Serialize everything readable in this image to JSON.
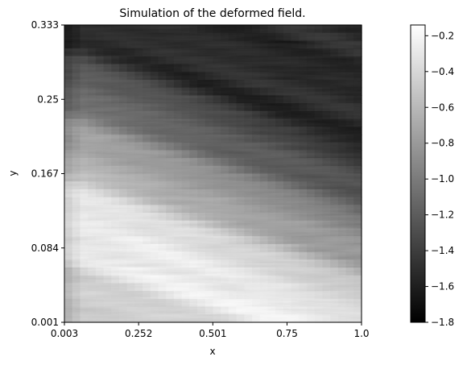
{
  "chart_data": {
    "type": "heatmap",
    "title": "Simulation of the deformed field.",
    "xlabel": "x",
    "ylabel": "y",
    "xlim": [
      0.003,
      1.0
    ],
    "ylim": [
      0.001,
      0.333
    ],
    "x_ticks": [
      0.003,
      0.252,
      0.501,
      0.75,
      1.0
    ],
    "x_tick_labels": [
      "0.003",
      "0.252",
      "0.501",
      "0.75",
      "1.0"
    ],
    "y_ticks": [
      0.001,
      0.084,
      0.167,
      0.25,
      0.333
    ],
    "y_tick_labels": [
      "0.001",
      "0.084",
      "0.167",
      "0.25",
      "0.333"
    ],
    "colormap": "gray",
    "colorbar": {
      "range": [
        -1.8,
        -0.14
      ],
      "ticks": [
        -1.8,
        -1.6,
        -1.4,
        -1.2,
        -1.0,
        -0.8,
        -0.6,
        -0.4,
        -0.2
      ],
      "tick_labels": [
        "−1.8",
        "−1.6",
        "−1.4",
        "−1.2",
        "−1.0",
        "−0.8",
        "−0.6",
        "−0.4",
        "−0.2"
      ]
    },
    "field_description": "Smooth diagonal gradient: brightest (about -0.3) in a band near y 0.08 to 0.15, darkest (about -1.75) near the top right (x 0.6 to 1.0, y 0.2 to 0.33)"
  }
}
